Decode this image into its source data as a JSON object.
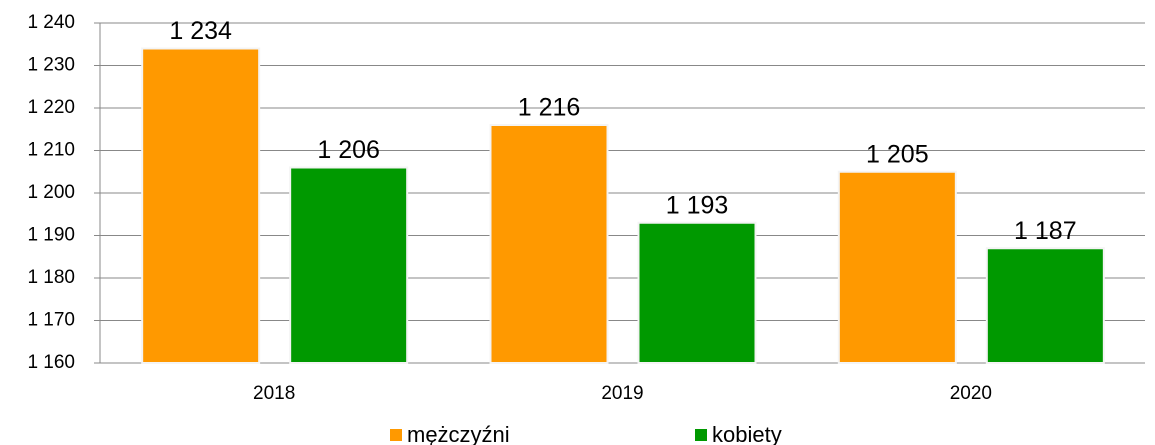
{
  "chart_data": {
    "type": "bar",
    "categories": [
      "2018",
      "2019",
      "2020"
    ],
    "series": [
      {
        "name": "mężczyźni",
        "color": "#ff9900",
        "values": [
          1234,
          1216,
          1205
        ],
        "value_labels": [
          "1 234",
          "1 216",
          "1 205"
        ]
      },
      {
        "name": "kobiety",
        "color": "#009900",
        "values": [
          1206,
          1193,
          1187
        ],
        "value_labels": [
          "1 206",
          "1 193",
          "1 187"
        ]
      }
    ],
    "ylim": [
      1160,
      1240
    ],
    "yticks": [
      {
        "value": 1160,
        "label": "1 160"
      },
      {
        "value": 1170,
        "label": "1 170"
      },
      {
        "value": 1180,
        "label": "1 180"
      },
      {
        "value": 1190,
        "label": "1 190"
      },
      {
        "value": 1200,
        "label": "1 200"
      },
      {
        "value": 1210,
        "label": "1 210"
      },
      {
        "value": 1220,
        "label": "1 220"
      },
      {
        "value": 1230,
        "label": "1 230"
      },
      {
        "value": 1240,
        "label": "1 240"
      }
    ],
    "grid": true,
    "legend": "bottom"
  }
}
